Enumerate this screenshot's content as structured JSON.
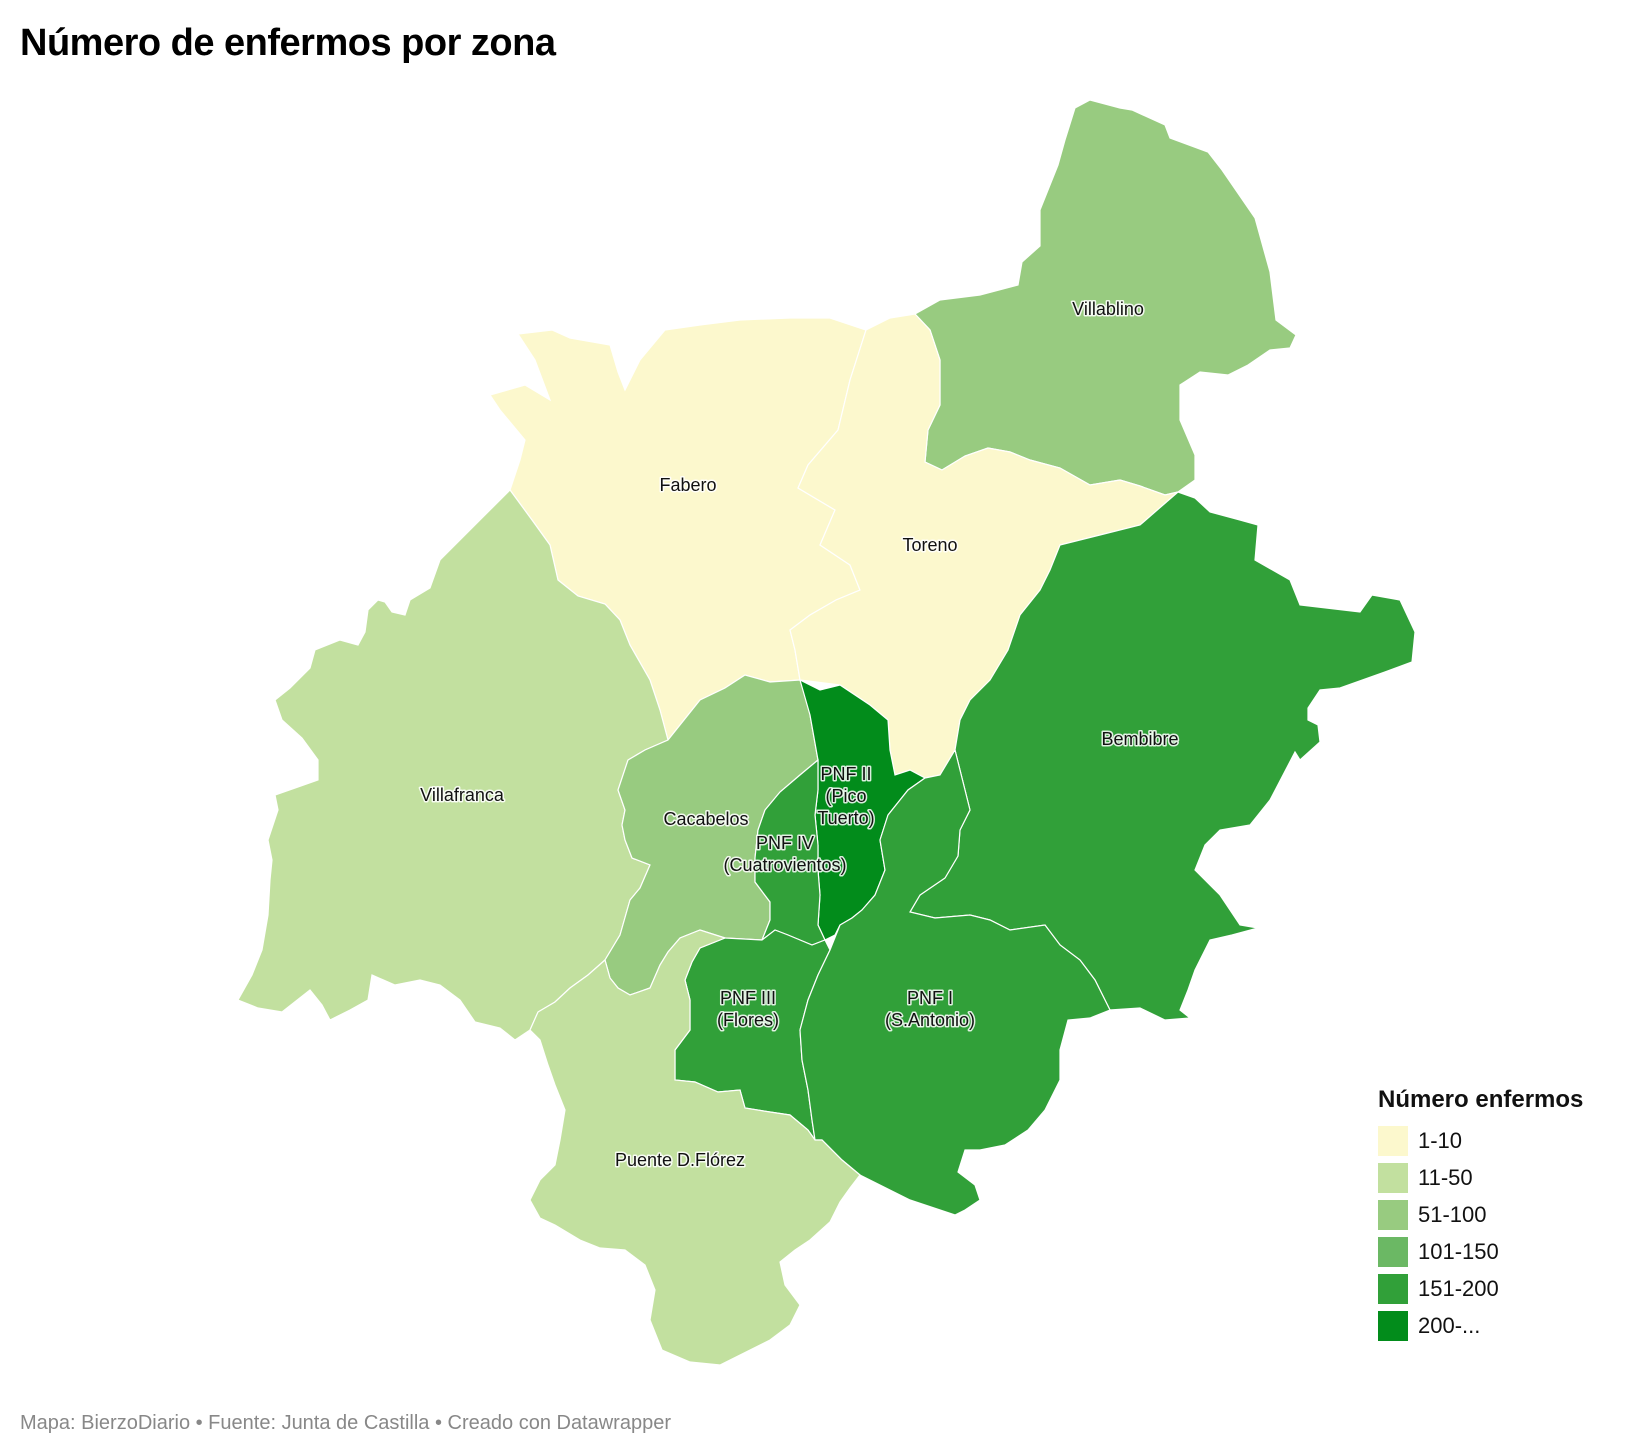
{
  "title": "Número de enfermos por zona",
  "legend": {
    "title": "Número enfermos",
    "items": [
      {
        "label": "1-10",
        "color": "#fcf8cd"
      },
      {
        "label": "11-50",
        "color": "#c2e09f"
      },
      {
        "label": "51-100",
        "color": "#98cb80"
      },
      {
        "label": "101-150",
        "color": "#6bb864"
      },
      {
        "label": "151-200",
        "color": "#31a039"
      },
      {
        "label": "200-...",
        "color": "#028c1b"
      }
    ]
  },
  "zones": [
    {
      "id": "fabero",
      "label": "Fabero",
      "range": "1-10"
    },
    {
      "id": "toreno",
      "label": "Toreno",
      "range": "1-10"
    },
    {
      "id": "villablino",
      "label": "Villablino",
      "range": "51-100"
    },
    {
      "id": "villafranca",
      "label": "Villafranca",
      "range": "11-50"
    },
    {
      "id": "cacabelos",
      "label": "Cacabelos",
      "range": "51-100"
    },
    {
      "id": "pnf2",
      "label": "PNF II (Pico Tuerto)",
      "label_lines": [
        "PNF II",
        "(Pico",
        "Tuerto)"
      ],
      "range": "200-..."
    },
    {
      "id": "pnf4",
      "label": "PNF IV (Cuatrovientos)",
      "label_lines": [
        "PNF IV",
        "(Cuatrovientos)"
      ],
      "range": "151-200"
    },
    {
      "id": "pnf3",
      "label": "PNF III (Flores)",
      "label_lines": [
        "PNF III",
        "(Flores)"
      ],
      "range": "151-200"
    },
    {
      "id": "pnf1",
      "label": "PNF I (S.Antonio)",
      "label_lines": [
        "PNF I",
        "(S.Antonio)"
      ],
      "range": "151-200"
    },
    {
      "id": "bembibre",
      "label": "Bembibre",
      "range": "151-200"
    },
    {
      "id": "puente",
      "label": "Puente D.Flórez",
      "range": "11-50"
    }
  ],
  "footer": "Mapa: BierzoDiario • Fuente: Junta de Castilla • Creado con Datawrapper"
}
